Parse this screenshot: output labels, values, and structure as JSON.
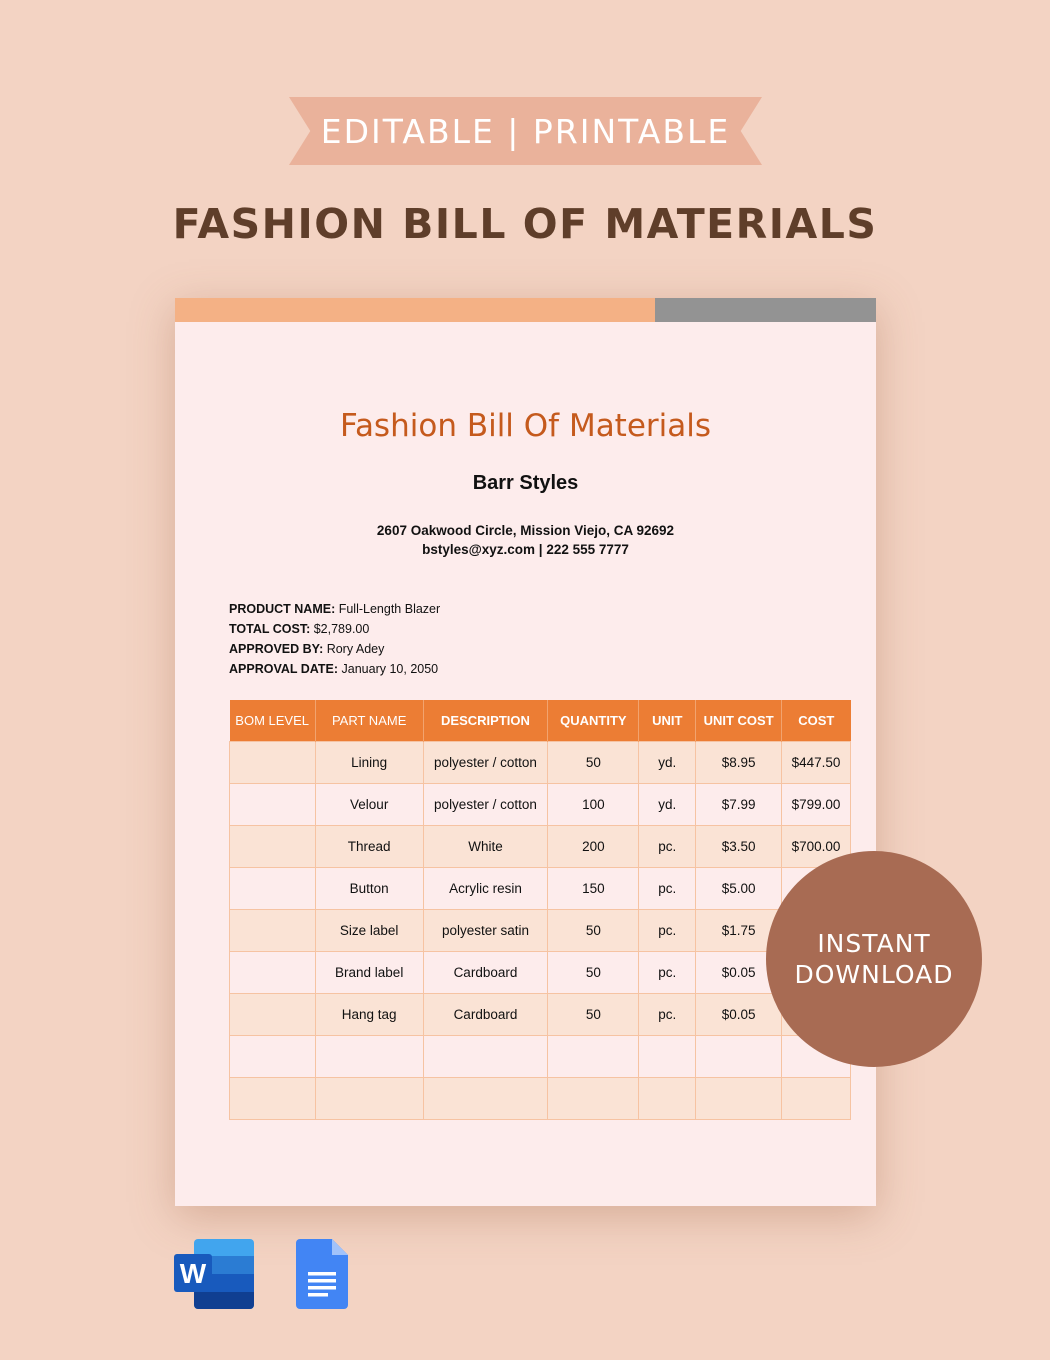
{
  "banner": {
    "ribbon_text": "EDITABLE | PRINTABLE",
    "title": "FASHION BILL OF MATERIALS"
  },
  "document": {
    "title": "Fashion Bill Of Materials",
    "company": "Barr Styles",
    "address": "2607 Oakwood Circle, Mission Viejo, CA 92692",
    "contact": "bstyles@xyz.com | 222 555 7777",
    "meta": [
      {
        "label": "PRODUCT NAME:",
        "value": " Full-Length Blazer"
      },
      {
        "label": "TOTAL COST:",
        "value": " $2,789.00"
      },
      {
        "label": "APPROVED BY:",
        "value": " Rory Adey"
      },
      {
        "label": "APPROVAL DATE:",
        "value": " January 10, 2050"
      }
    ],
    "table": {
      "headers": [
        "BOM LEVEL",
        "PART NAME",
        "DESCRIPTION",
        "QUANTITY",
        "UNIT",
        "UNIT COST",
        "COST"
      ],
      "rows": [
        [
          "",
          "Lining",
          "polyester / cotton",
          "50",
          "yd.",
          "$8.95",
          "$447.50"
        ],
        [
          "",
          "Velour",
          "polyester / cotton",
          "100",
          "yd.",
          "$7.99",
          "$799.00"
        ],
        [
          "",
          "Thread",
          "White",
          "200",
          "pc.",
          "$3.50",
          "$700.00"
        ],
        [
          "",
          "Button",
          "Acrylic resin",
          "150",
          "pc.",
          "$5.00",
          "$"
        ],
        [
          "",
          "Size label",
          "polyester satin",
          "50",
          "pc.",
          "$1.75",
          ""
        ],
        [
          "",
          "Brand label",
          "Cardboard",
          "50",
          "pc.",
          "$0.05",
          ""
        ],
        [
          "",
          "Hang tag",
          "Cardboard",
          "50",
          "pc.",
          "$0.05",
          ""
        ],
        [
          "",
          "",
          "",
          "",
          "",
          "",
          ""
        ],
        [
          "",
          "",
          "",
          "",
          "",
          "",
          ""
        ]
      ]
    }
  },
  "badge": {
    "line1": "INSTANT",
    "line2": "DOWNLOAD"
  },
  "icons": {
    "word": "microsoft-word-icon",
    "gdocs": "google-docs-icon"
  },
  "colors": {
    "accent": "#ec7d34",
    "title": "#c55a1d",
    "badge": "#a86b53",
    "ribbon": "#eab29b"
  }
}
